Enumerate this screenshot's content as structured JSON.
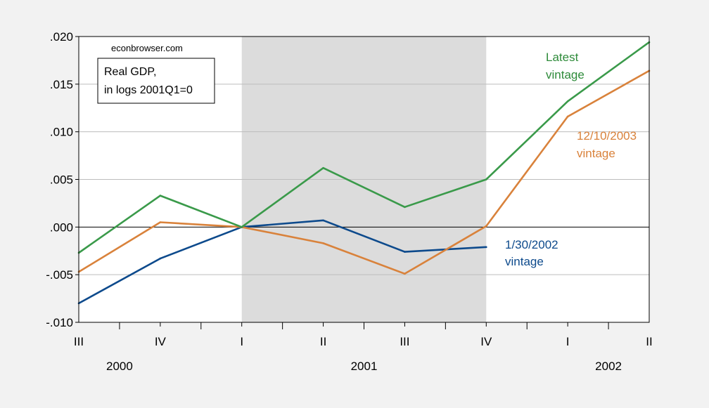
{
  "chart_data": {
    "type": "line",
    "source": "econbrowser.com",
    "legend_box": [
      "Real GDP,",
      "in logs 2001Q1=0"
    ],
    "x": [
      "2000Q3",
      "2000Q4",
      "2001Q1",
      "2001Q2",
      "2001Q3",
      "2001Q4",
      "2002Q1",
      "2002Q2"
    ],
    "quarter_labels": [
      "III",
      "IV",
      "I",
      "II",
      "III",
      "IV",
      "I",
      "II"
    ],
    "year_labels": [
      {
        "label": "2000",
        "center_index": 0.5
      },
      {
        "label": "2001",
        "center_index": 3.5
      },
      {
        "label": "2002",
        "center_index": 6.5
      }
    ],
    "ylim": [
      -0.01,
      0.02
    ],
    "yticks": [
      -0.01,
      -0.005,
      0.0,
      0.005,
      0.01,
      0.015,
      0.02
    ],
    "ytick_labels": [
      "-.010",
      "-.005",
      ".000",
      ".005",
      ".010",
      ".015",
      ".020"
    ],
    "recession_shading": {
      "from_index": 2,
      "to_index": 5,
      "color": "#dcdcdc"
    },
    "series": [
      {
        "label_lines": [
          "1/30/2002",
          "vintage"
        ],
        "color": "#0d4a8c",
        "values": [
          -0.008,
          -0.0033,
          0.0,
          0.0007,
          -0.0026,
          -0.0021,
          null,
          null
        ]
      },
      {
        "label_lines": [
          "12/10/2003",
          "vintage"
        ],
        "color": "#d9823b",
        "values": [
          -0.0047,
          0.0005,
          0.0,
          -0.0017,
          -0.0049,
          0.0001,
          0.0116,
          0.0164
        ]
      },
      {
        "label_lines": [
          "Latest",
          "vintage"
        ],
        "color": "#3a9a4a",
        "values": [
          -0.0027,
          0.0033,
          0.0,
          0.0062,
          0.0021,
          0.005,
          0.0132,
          0.0194
        ]
      }
    ]
  }
}
